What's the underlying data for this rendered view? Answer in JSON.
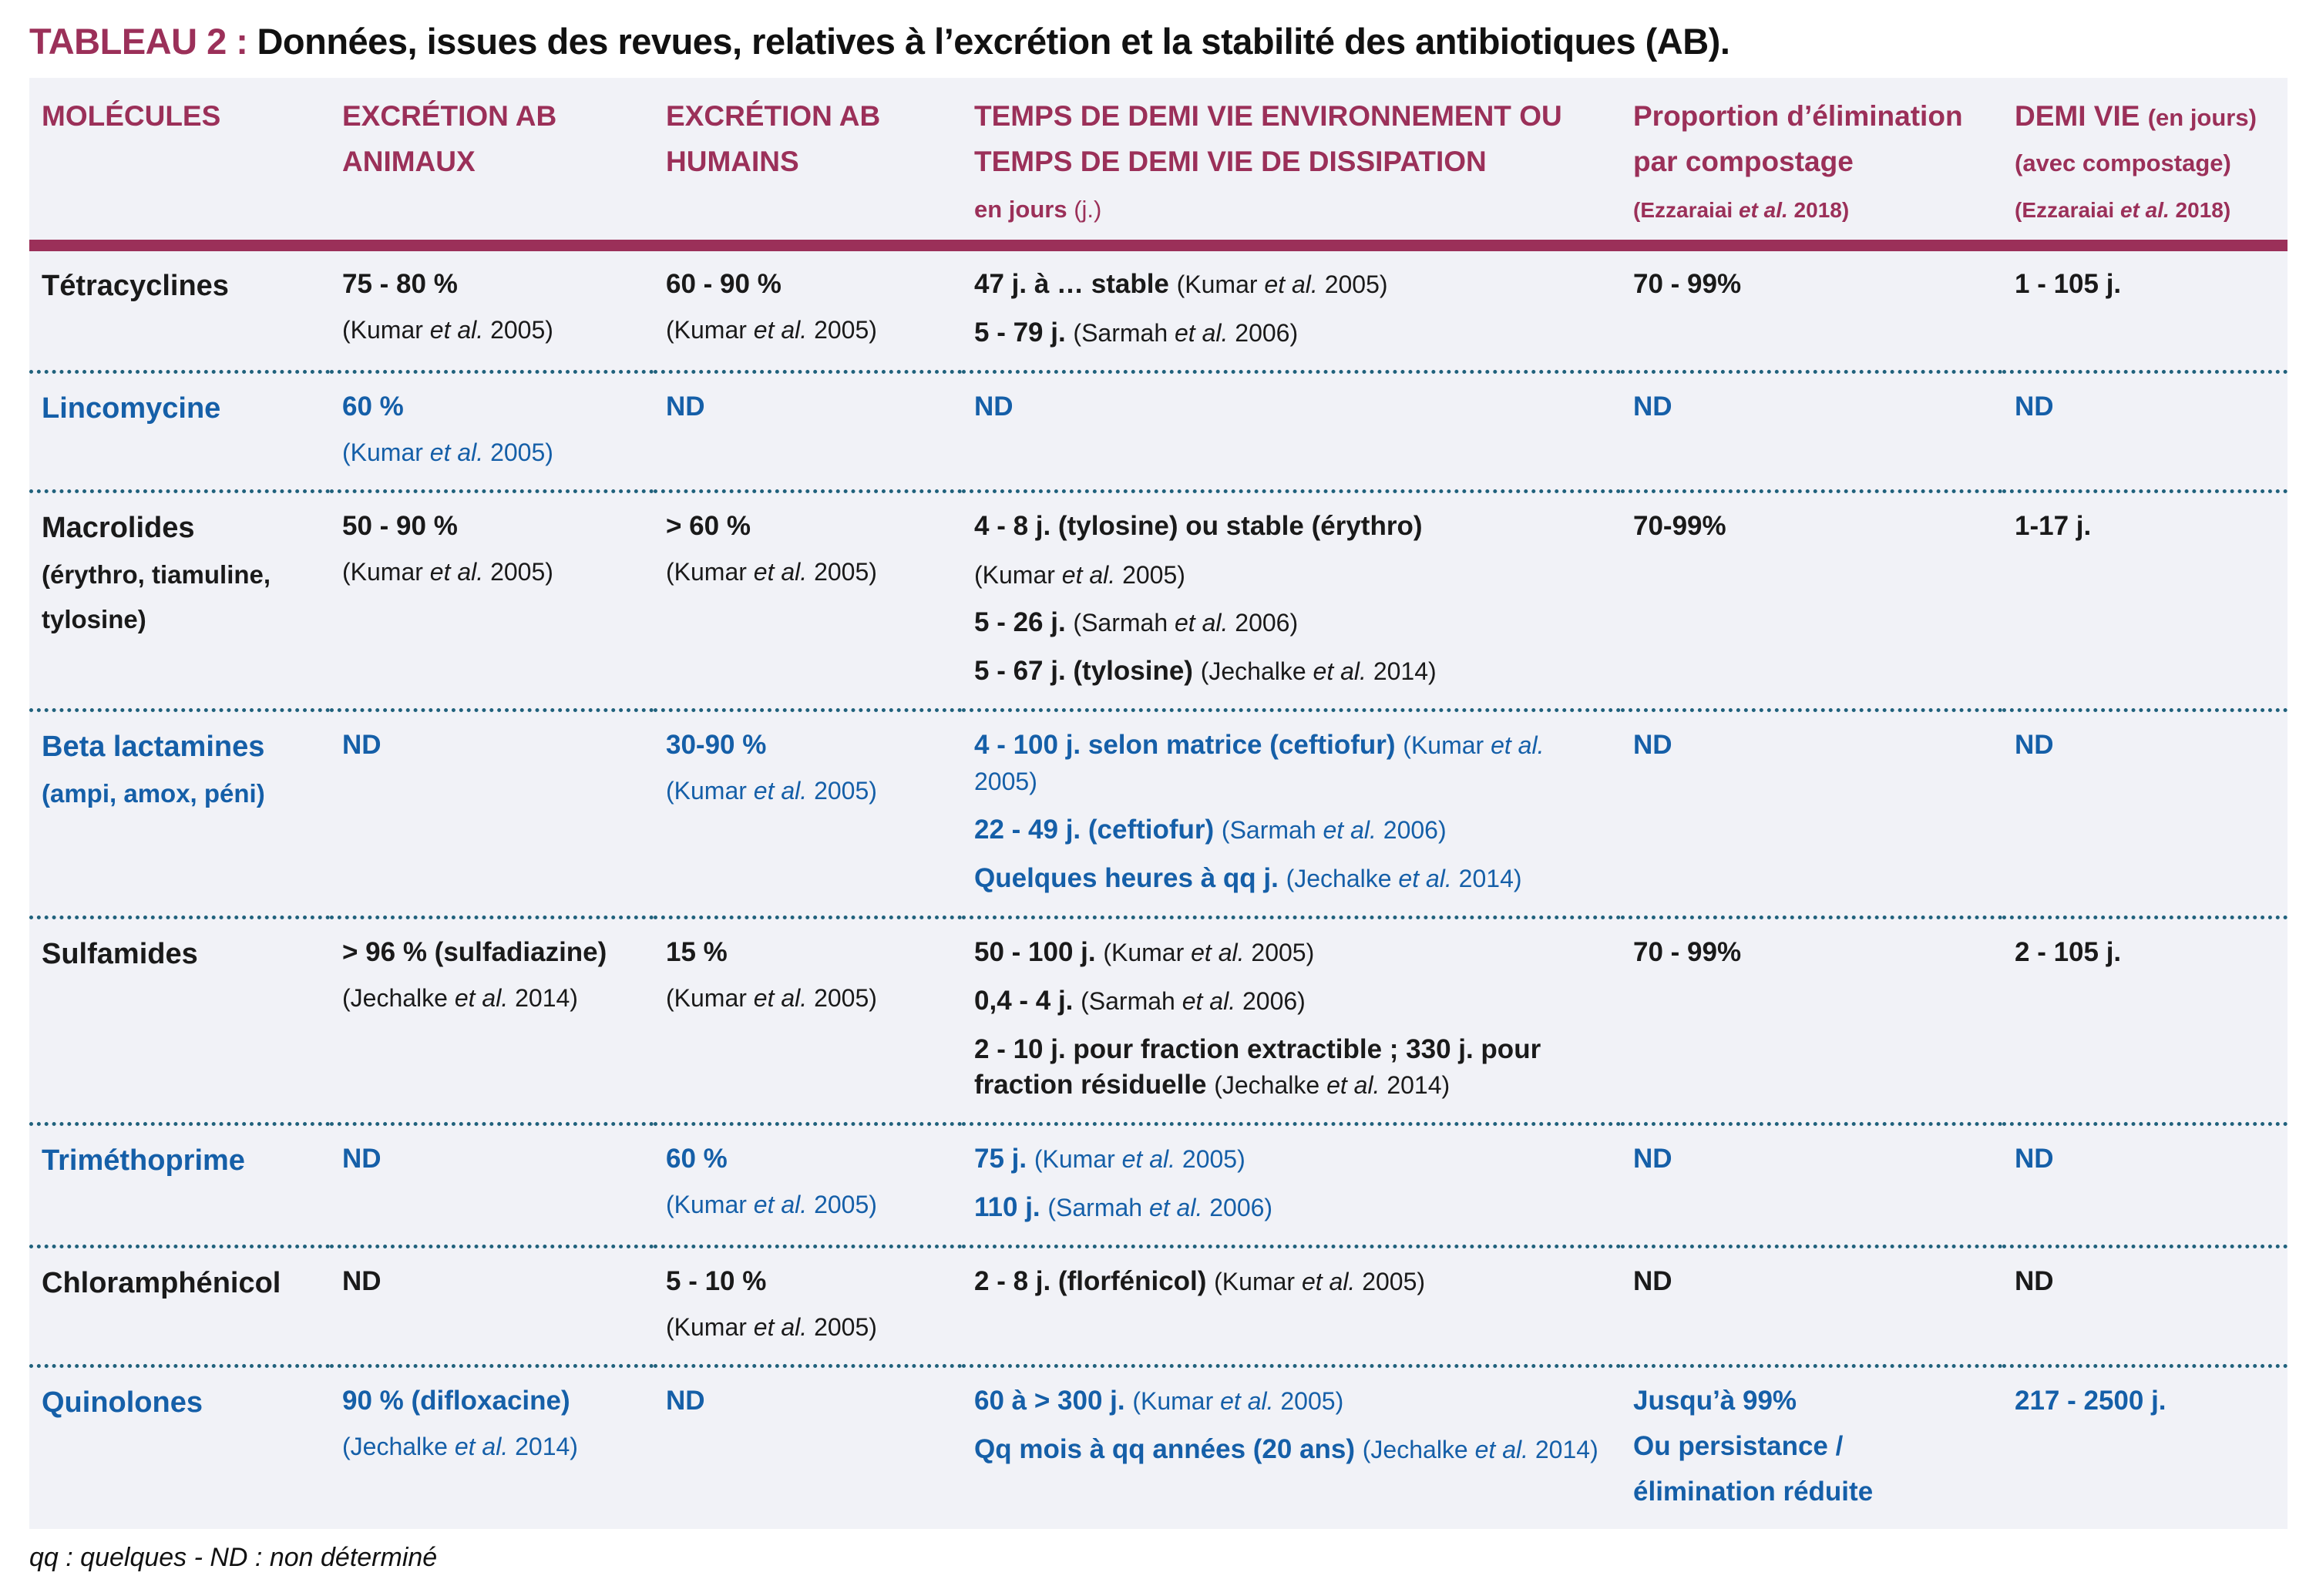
{
  "title": {
    "label": "TABLEAU 2 :",
    "text": "Données, issues des revues, relatives à l’excrétion et la stabilité des antibiotiques (AB)."
  },
  "footnote": "qq : quelques - ND : non déterminé",
  "colors": {
    "maroon": "#9B3059",
    "blue": "#155FA8",
    "dotted_separator": "#20617C",
    "table_background": "#F1F2F7",
    "text_dark": "#1A1A1A"
  },
  "table": {
    "headers": [
      {
        "name": "molecules",
        "lines": [
          [
            [
              "MOLÉCULES",
              "v"
            ]
          ]
        ]
      },
      {
        "name": "excretion-ab-animaux",
        "lines": [
          [
            [
              "EXCRÉTION AB",
              "v"
            ]
          ],
          [
            [
              "ANIMAUX",
              "v"
            ]
          ]
        ]
      },
      {
        "name": "excretion-ab-humains",
        "lines": [
          [
            [
              "EXCRÉTION AB",
              "v"
            ]
          ],
          [
            [
              "HUMAINS",
              "v"
            ]
          ]
        ]
      },
      {
        "name": "temps-demi-vie-environnement",
        "lines": [
          [
            [
              "TEMPS DE DEMI VIE ENVIRONNEMENT OU",
              "v"
            ]
          ],
          [
            [
              "TEMPS DE DEMI VIE DE DISSIPATION",
              "v"
            ]
          ],
          [
            [
              "en jours ",
              "hs"
            ],
            [
              "(j.)",
              "hsn"
            ]
          ]
        ]
      },
      {
        "name": "proportion-elimination-compostage",
        "lines": [
          [
            [
              "Proportion d’élimination",
              "v"
            ]
          ],
          [
            [
              "par compostage",
              "v"
            ]
          ],
          [
            [
              "(Ezzaraiai ",
              "hc"
            ],
            [
              "et al.",
              "hci"
            ],
            [
              " 2018)",
              "hc"
            ]
          ]
        ]
      },
      {
        "name": "demi-vie-avec-compostage",
        "lines": [
          [
            [
              "DEMI VIE ",
              "v"
            ],
            [
              "(en jours)",
              "hs"
            ]
          ],
          [
            [
              "(avec compostage)",
              "hs"
            ]
          ],
          [
            [
              "(Ezzaraiai ",
              "hc"
            ],
            [
              "et al.",
              "hci"
            ],
            [
              " 2018)",
              "hc"
            ]
          ]
        ]
      }
    ],
    "rows": [
      {
        "id": "tetracyclines",
        "tone": "dark",
        "cells": [
          [
            [
              [
                "Tétracyclines",
                "v"
              ]
            ]
          ],
          [
            [
              [
                "75 - 80 %",
                "v"
              ]
            ],
            [
              [
                "(Kumar ",
                "c"
              ],
              [
                "et al.",
                "i"
              ],
              [
                " 2005)",
                "c"
              ]
            ]
          ],
          [
            [
              [
                "60 - 90 %",
                "v"
              ]
            ],
            [
              [
                "(Kumar ",
                "c"
              ],
              [
                "et al.",
                "i"
              ],
              [
                " 2005)",
                "c"
              ]
            ]
          ],
          [
            [
              [
                "47 j. à … stable ",
                "v"
              ],
              [
                "(Kumar ",
                "c"
              ],
              [
                "et al.",
                "i"
              ],
              [
                " 2005)",
                "c"
              ]
            ],
            [
              [
                "5 - 79 j. ",
                "v"
              ],
              [
                "(Sarmah ",
                "c"
              ],
              [
                "et al.",
                "i"
              ],
              [
                " 2006)",
                "c"
              ]
            ]
          ],
          [
            [
              [
                "70 - 99%",
                "v"
              ]
            ]
          ],
          [
            [
              [
                "1 - 105 j.",
                "v"
              ]
            ]
          ]
        ]
      },
      {
        "id": "lincomycine",
        "tone": "blue",
        "cells": [
          [
            [
              [
                "Lincomycine",
                "v"
              ]
            ]
          ],
          [
            [
              [
                "60 %",
                "v"
              ]
            ],
            [
              [
                "(Kumar ",
                "c"
              ],
              [
                "et al.",
                "i"
              ],
              [
                " 2005)",
                "c"
              ]
            ]
          ],
          [
            [
              [
                "ND",
                "v"
              ]
            ]
          ],
          [
            [
              [
                "ND",
                "v"
              ]
            ]
          ],
          [
            [
              [
                "ND",
                "v"
              ]
            ]
          ],
          [
            [
              [
                "ND",
                "v"
              ]
            ]
          ]
        ]
      },
      {
        "id": "macrolides",
        "tone": "dark",
        "cells": [
          [
            [
              [
                "Macrolides",
                "v"
              ]
            ],
            [
              [
                "(érythro, tiamuline,",
                "sub"
              ]
            ],
            [
              [
                "tylosine)",
                "sub"
              ]
            ]
          ],
          [
            [
              [
                "50 - 90 %",
                "v"
              ]
            ],
            [
              [
                "(Kumar ",
                "c"
              ],
              [
                "et al.",
                "i"
              ],
              [
                " 2005)",
                "c"
              ]
            ]
          ],
          [
            [
              [
                "> 60 %",
                "v"
              ]
            ],
            [
              [
                "(Kumar ",
                "c"
              ],
              [
                "et al.",
                "i"
              ],
              [
                " 2005)",
                "c"
              ]
            ]
          ],
          [
            [
              [
                "4 - 8 j. (tylosine) ou stable (érythro)",
                "v"
              ]
            ],
            [
              [
                "(Kumar ",
                "c"
              ],
              [
                "et al.",
                "i"
              ],
              [
                " 2005)",
                "c"
              ]
            ],
            [
              [
                "5 - 26 j. ",
                "v"
              ],
              [
                "(Sarmah ",
                "c"
              ],
              [
                "et al.",
                "i"
              ],
              [
                " 2006)",
                "c"
              ]
            ],
            [
              [
                "5 - 67 j. (tylosine) ",
                "v"
              ],
              [
                "(Jechalke ",
                "c"
              ],
              [
                "et al.",
                "i"
              ],
              [
                " 2014)",
                "c"
              ]
            ]
          ],
          [
            [
              [
                "70-99%",
                "v"
              ]
            ]
          ],
          [
            [
              [
                "1-17 j.",
                "v"
              ]
            ]
          ]
        ]
      },
      {
        "id": "beta-lactamines",
        "tone": "blue",
        "cells": [
          [
            [
              [
                "Beta lactamines",
                "v"
              ]
            ],
            [
              [
                "(ampi, amox, péni)",
                "sub"
              ]
            ]
          ],
          [
            [
              [
                "ND",
                "v"
              ]
            ]
          ],
          [
            [
              [
                "30-90 %",
                "v"
              ]
            ],
            [
              [
                "(Kumar ",
                "c"
              ],
              [
                "et al.",
                "i"
              ],
              [
                " 2005)",
                "c"
              ]
            ]
          ],
          [
            [
              [
                "4 - 100 j. selon matrice (ceftiofur) ",
                "v"
              ],
              [
                "(Kumar ",
                "c"
              ],
              [
                "et al.",
                "i"
              ],
              [
                " 2005)",
                "c"
              ]
            ],
            [
              [
                "22 - 49 j. (ceftiofur) ",
                "v"
              ],
              [
                "(Sarmah ",
                "c"
              ],
              [
                "et al.",
                "i"
              ],
              [
                " 2006)",
                "c"
              ]
            ],
            [
              [
                "Quelques heures à qq j. ",
                "v"
              ],
              [
                "(Jechalke ",
                "c"
              ],
              [
                "et al.",
                "i"
              ],
              [
                " 2014)",
                "c"
              ]
            ]
          ],
          [
            [
              [
                "ND",
                "v"
              ]
            ]
          ],
          [
            [
              [
                "ND",
                "v"
              ]
            ]
          ]
        ]
      },
      {
        "id": "sulfamides",
        "tone": "dark",
        "cells": [
          [
            [
              [
                "Sulfamides",
                "v"
              ]
            ]
          ],
          [
            [
              [
                "> 96 % (sulfadiazine)",
                "v"
              ]
            ],
            [
              [
                "(Jechalke ",
                "c"
              ],
              [
                "et al.",
                "i"
              ],
              [
                " 2014)",
                "c"
              ]
            ]
          ],
          [
            [
              [
                "15 %",
                "v"
              ]
            ],
            [
              [
                "(Kumar ",
                "c"
              ],
              [
                "et al.",
                "i"
              ],
              [
                " 2005)",
                "c"
              ]
            ]
          ],
          [
            [
              [
                "50 - 100 j. ",
                "v"
              ],
              [
                "(Kumar ",
                "c"
              ],
              [
                "et al.",
                "i"
              ],
              [
                " 2005)",
                "c"
              ]
            ],
            [
              [
                "0,4 - 4 j. ",
                "v"
              ],
              [
                "(Sarmah ",
                "c"
              ],
              [
                "et al.",
                "i"
              ],
              [
                " 2006)",
                "c"
              ]
            ],
            [
              [
                "2 - 10 j. pour fraction extractible ; 330 j. pour fraction résiduelle ",
                "v"
              ],
              [
                "(Jechalke ",
                "c"
              ],
              [
                "et al.",
                "i"
              ],
              [
                " 2014)",
                "c"
              ]
            ]
          ],
          [
            [
              [
                "70 - 99%",
                "v"
              ]
            ]
          ],
          [
            [
              [
                "2 - 105 j.",
                "v"
              ]
            ]
          ]
        ]
      },
      {
        "id": "trimethoprime",
        "tone": "blue",
        "cells": [
          [
            [
              [
                "Triméthoprime",
                "v"
              ]
            ]
          ],
          [
            [
              [
                "ND",
                "v"
              ]
            ]
          ],
          [
            [
              [
                "60 %",
                "v"
              ]
            ],
            [
              [
                "(Kumar ",
                "c"
              ],
              [
                "et al.",
                "i"
              ],
              [
                " 2005)",
                "c"
              ]
            ]
          ],
          [
            [
              [
                "75 j. ",
                "v"
              ],
              [
                "(Kumar ",
                "c"
              ],
              [
                "et al.",
                "i"
              ],
              [
                " 2005)",
                "c"
              ]
            ],
            [
              [
                "110 j. ",
                "v"
              ],
              [
                "(Sarmah ",
                "c"
              ],
              [
                "et al.",
                "i"
              ],
              [
                " 2006)",
                "c"
              ]
            ]
          ],
          [
            [
              [
                "ND",
                "v"
              ]
            ]
          ],
          [
            [
              [
                "ND",
                "v"
              ]
            ]
          ]
        ]
      },
      {
        "id": "chloramphenicol",
        "tone": "dark",
        "cells": [
          [
            [
              [
                "Chloramphénicol",
                "v"
              ]
            ]
          ],
          [
            [
              [
                "ND",
                "v"
              ]
            ]
          ],
          [
            [
              [
                "5 - 10 %",
                "v"
              ]
            ],
            [
              [
                "(Kumar ",
                "c"
              ],
              [
                "et al.",
                "i"
              ],
              [
                " 2005)",
                "c"
              ]
            ]
          ],
          [
            [
              [
                "2 - 8 j. (florfénicol) ",
                "v"
              ],
              [
                "(Kumar ",
                "c"
              ],
              [
                "et al.",
                "i"
              ],
              [
                " 2005)",
                "c"
              ]
            ]
          ],
          [
            [
              [
                "ND",
                "v"
              ]
            ]
          ],
          [
            [
              [
                "ND",
                "v"
              ]
            ]
          ]
        ]
      },
      {
        "id": "quinolones",
        "tone": "blue",
        "cells": [
          [
            [
              [
                "Quinolones",
                "v"
              ]
            ]
          ],
          [
            [
              [
                "90 % (difloxacine)",
                "v"
              ]
            ],
            [
              [
                "(Jechalke ",
                "c"
              ],
              [
                "et al.",
                "i"
              ],
              [
                " 2014)",
                "c"
              ]
            ]
          ],
          [
            [
              [
                "ND",
                "v"
              ]
            ]
          ],
          [
            [
              [
                "60 à > 300 j. ",
                "v"
              ],
              [
                "(Kumar ",
                "c"
              ],
              [
                "et al.",
                "i"
              ],
              [
                " 2005)",
                "c"
              ]
            ],
            [
              [
                "Qq mois à qq années (20 ans) ",
                "v"
              ],
              [
                "(Jechalke ",
                "c"
              ],
              [
                "et al.",
                "i"
              ],
              [
                " 2014)",
                "c"
              ]
            ]
          ],
          [
            [
              [
                "Jusqu’à 99%",
                "v"
              ]
            ],
            [
              [
                "Ou persistance /",
                "v"
              ]
            ],
            [
              [
                "élimination réduite",
                "v"
              ]
            ]
          ],
          [
            [
              [
                "217 - 2500 j.",
                "v"
              ]
            ]
          ]
        ]
      }
    ]
  }
}
